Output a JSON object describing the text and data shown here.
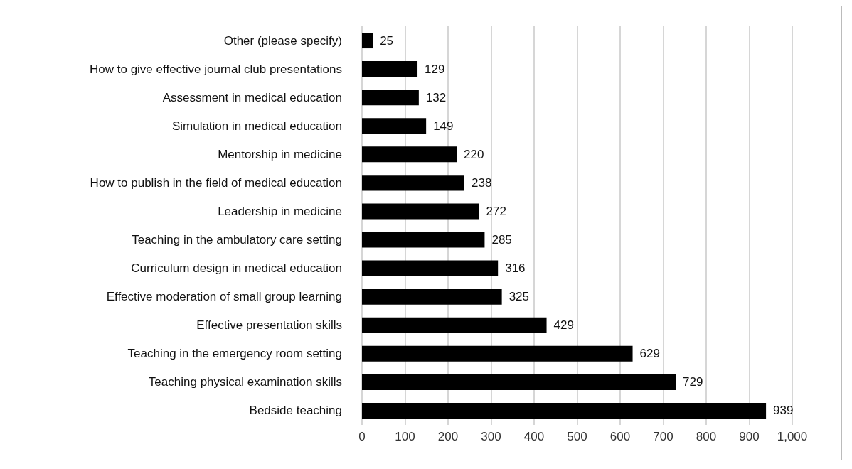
{
  "chart_data": {
    "type": "bar",
    "orientation": "horizontal",
    "categories": [
      "Other (please specify)",
      "How to give effective journal club presentations",
      "Assessment in medical education",
      "Simulation in medical education",
      "Mentorship in medicine",
      "How to publish in the field of medical education",
      "Leadership in medicine",
      "Teaching in the ambulatory care setting",
      "Curriculum design in medical education",
      "Effective moderation of small group learning",
      "Effective presentation skills",
      "Teaching in the emergency room setting",
      "Teaching physical examination skills",
      "Bedside teaching"
    ],
    "values": [
      25,
      129,
      132,
      149,
      220,
      238,
      272,
      285,
      316,
      325,
      429,
      629,
      729,
      939
    ],
    "color": "#000000",
    "xlim": [
      0,
      1000
    ],
    "xticks": [
      0,
      100,
      200,
      300,
      400,
      500,
      600,
      700,
      800,
      900,
      {
        "value": 1000,
        "label": "1,000"
      }
    ],
    "grid": "x",
    "data_labels": true
  }
}
